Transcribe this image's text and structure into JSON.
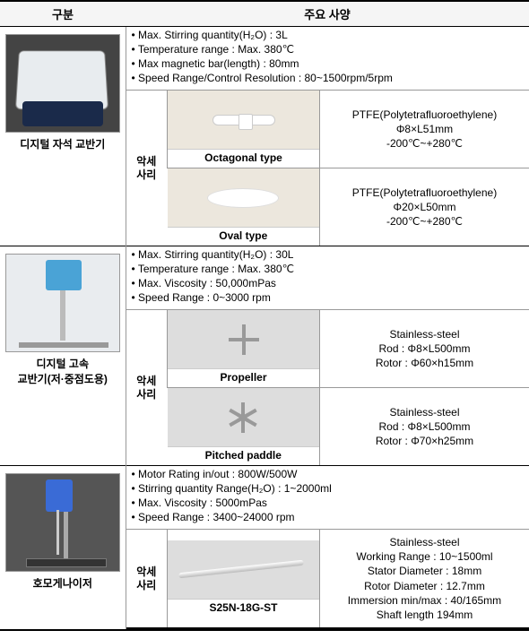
{
  "header": {
    "col1": "구분",
    "col2": "주요 사양"
  },
  "equipment": [
    {
      "name": "디지털 자석 교반기",
      "photo_style": "p1",
      "specs": [
        "Max. Stirring quantity(H₂O) : 3L",
        "Temperature range : Max. 380℃",
        "Max magnetic bar(length) : 80mm",
        "Speed Range/Control Resolution : 80~1500rpm/5rpm"
      ],
      "acc_label": "악세\n사리",
      "accessories": [
        {
          "img": "octa",
          "caption": "Octagonal type",
          "desc": "PTFE(Polytetrafluoroethylene)\nΦ8×L51mm\n-200℃~+280℃"
        },
        {
          "img": "oval",
          "caption": "Oval type",
          "desc": "PTFE(Polytetrafluoroethylene)\nΦ20×L50mm\n-200℃~+280℃"
        }
      ]
    },
    {
      "name": "디지털 고속\n교반기(저·중점도용)",
      "photo_style": "p2",
      "specs": [
        "Max. Stirring quantity(H₂O) : 30L",
        "Temperature range : Max. 380℃",
        "Max. Viscosity : 50,000mPas",
        "Speed Range : 0~3000 rpm"
      ],
      "acc_label": "악세\n사리",
      "accessories": [
        {
          "img": "prop4",
          "caption": "Propeller",
          "desc": "Stainless-steel\nRod : Φ8×L500mm\nRotor : Φ60×h15mm"
        },
        {
          "img": "prop6",
          "caption": "Pitched paddle",
          "desc": "Stainless-steel\nRod : Φ8×L500mm\nRotor : Φ70×h25mm"
        }
      ]
    },
    {
      "name": "호모게나이저",
      "photo_style": "p3",
      "specs": [
        "Motor Rating in/out : 800W/500W",
        "Stirring quantity Range(H₂O) : 1~2000ml",
        "Max. Viscosity : 5000mPas",
        "Speed Range : 3400~24000 rpm"
      ],
      "acc_label": "악세\n사리",
      "accessories": [
        {
          "img": "rod",
          "caption": "S25N-18G-ST",
          "desc": "Stainless-steel\nWorking Range : 10~1500ml\nStator Diameter : 18mm\nRotor Diameter : 12.7mm\nImmersion min/max : 40/165mm\nShaft length 194mm"
        }
      ]
    }
  ]
}
